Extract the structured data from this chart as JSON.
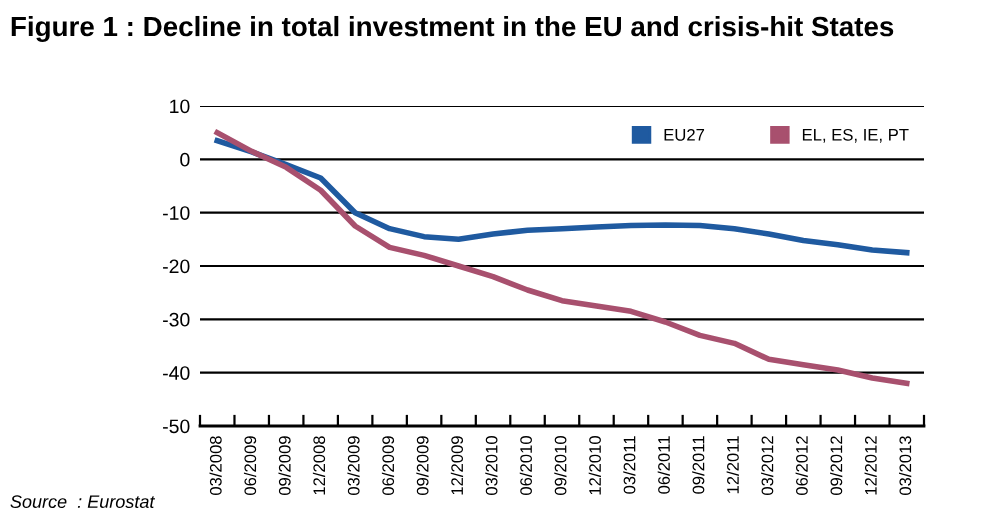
{
  "chart_data": {
    "type": "line",
    "title": "Figure 1 : Decline in total investment in the EU and crisis-hit States",
    "categories": [
      "03/2008",
      "06/2009",
      "09/2009",
      "12/2008",
      "03/2009",
      "06/2009",
      "09/2009",
      "12/2009",
      "03/2010",
      "06/2010",
      "09/2010",
      "12/2010",
      "03/2011",
      "06/2011",
      "09/2011",
      "12/2011",
      "03/2012",
      "06/2012",
      "09/2012",
      "12/2012",
      "03/2013"
    ],
    "series": [
      {
        "name": "EU27",
        "color": "#1f5aa0",
        "values": [
          3.5,
          1.4,
          -1,
          -3.5,
          -10,
          -13,
          -14.5,
          -15,
          -14,
          -13.3,
          -13,
          -12.7,
          -12.4,
          -12.3,
          -12.4,
          -13,
          -14,
          -15.2,
          -16,
          -17,
          -17.5
        ]
      },
      {
        "name": "EL, ES, IE, PT",
        "color": "#a8506e",
        "values": [
          5,
          1.5,
          -1.5,
          -5.8,
          -12.5,
          -16.5,
          -18,
          -20,
          -22,
          -24.5,
          -26.5,
          -27.5,
          -28.5,
          -30.5,
          -33,
          -34.5,
          -37.5,
          -38.5,
          -39.5,
          -41,
          -42
        ]
      }
    ],
    "ylim": [
      -50,
      10
    ],
    "yticks": [
      -50,
      -40,
      -30,
      -20,
      -10,
      0,
      10
    ],
    "grid": "y",
    "legend": "top right",
    "marker": "none",
    "line_style": "solid",
    "annotations": [
      "Source  : Eurostat"
    ]
  }
}
